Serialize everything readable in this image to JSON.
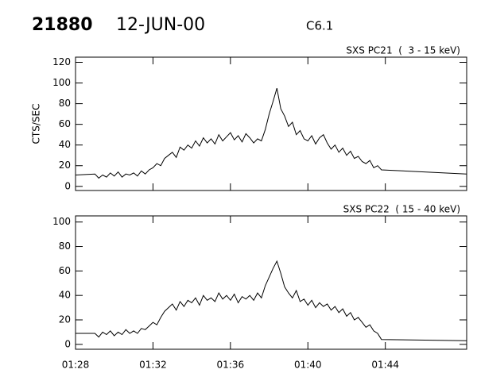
{
  "header": {
    "event": "21880",
    "date": "12-JUN-00",
    "class": "C6.1"
  },
  "chart_data": [
    {
      "type": "line",
      "subtitle": "SXS PC21  (  3 - 15 keV)",
      "ylabel": "CTS/SEC",
      "x": [
        0,
        1.0,
        1.2,
        1.4,
        1.6,
        1.8,
        2.0,
        2.2,
        2.4,
        2.6,
        2.8,
        3.0,
        3.2,
        3.4,
        3.6,
        3.8,
        4.0,
        4.2,
        4.4,
        4.6,
        4.8,
        5.0,
        5.2,
        5.4,
        5.6,
        5.8,
        6.0,
        6.2,
        6.4,
        6.6,
        6.8,
        7.0,
        7.2,
        7.4,
        7.6,
        7.8,
        8.0,
        8.2,
        8.4,
        8.6,
        8.8,
        9.0,
        9.2,
        9.4,
        9.6,
        9.8,
        10.0,
        10.2,
        10.4,
        10.6,
        10.8,
        11.0,
        11.2,
        11.4,
        11.6,
        11.8,
        12.0,
        12.2,
        12.4,
        12.6,
        12.8,
        13.0,
        13.2,
        13.4,
        13.6,
        13.8,
        14.0,
        14.2,
        14.4,
        14.6,
        14.8,
        15.0,
        15.2,
        15.4,
        15.6,
        15.8,
        20.2
      ],
      "series": [
        {
          "color": "#000000",
          "values": [
            11,
            12,
            8,
            11,
            9,
            13,
            10,
            14,
            9,
            12,
            11,
            13,
            10,
            15,
            12,
            16,
            18,
            22,
            20,
            27,
            30,
            33,
            28,
            38,
            35,
            40,
            37,
            44,
            39,
            47,
            42,
            46,
            41,
            50,
            44,
            48,
            52,
            45,
            49,
            43,
            51,
            47,
            42,
            46,
            44,
            55,
            70,
            82,
            95,
            75,
            68,
            58,
            62,
            50,
            54,
            46,
            44,
            49,
            41,
            47,
            50,
            42,
            36,
            40,
            33,
            37,
            30,
            34,
            27,
            29,
            24,
            22,
            25,
            18,
            20,
            16,
            12
          ]
        }
      ],
      "xlim": [
        0,
        20.2
      ],
      "xticks": [
        0,
        4,
        8,
        12,
        16
      ],
      "ylim": [
        -4,
        125
      ],
      "yticks": [
        0,
        20,
        40,
        60,
        80,
        100,
        120
      ]
    },
    {
      "type": "line",
      "subtitle": "SXS PC22  ( 15 - 40 keV)",
      "x": [
        0,
        1.0,
        1.2,
        1.4,
        1.6,
        1.8,
        2.0,
        2.2,
        2.4,
        2.6,
        2.8,
        3.0,
        3.2,
        3.4,
        3.6,
        3.8,
        4.0,
        4.2,
        4.4,
        4.6,
        4.8,
        5.0,
        5.2,
        5.4,
        5.6,
        5.8,
        6.0,
        6.2,
        6.4,
        6.6,
        6.8,
        7.0,
        7.2,
        7.4,
        7.6,
        7.8,
        8.0,
        8.2,
        8.4,
        8.6,
        8.8,
        9.0,
        9.2,
        9.4,
        9.6,
        9.8,
        10.0,
        10.2,
        10.4,
        10.6,
        10.8,
        11.0,
        11.2,
        11.4,
        11.6,
        11.8,
        12.0,
        12.2,
        12.4,
        12.6,
        12.8,
        13.0,
        13.2,
        13.4,
        13.6,
        13.8,
        14.0,
        14.2,
        14.4,
        14.6,
        14.8,
        15.0,
        15.2,
        15.4,
        15.6,
        15.8,
        20.2
      ],
      "series": [
        {
          "color": "#000000",
          "values": [
            9,
            9,
            6,
            10,
            8,
            11,
            7,
            10,
            8,
            12,
            9,
            11,
            9,
            13,
            12,
            15,
            18,
            16,
            22,
            27,
            30,
            33,
            28,
            35,
            31,
            36,
            34,
            38,
            32,
            40,
            36,
            38,
            35,
            42,
            37,
            40,
            36,
            41,
            34,
            39,
            37,
            40,
            36,
            42,
            38,
            48,
            55,
            62,
            68,
            58,
            47,
            42,
            38,
            44,
            35,
            37,
            32,
            36,
            30,
            34,
            31,
            33,
            28,
            31,
            26,
            29,
            23,
            26,
            20,
            22,
            18,
            14,
            16,
            11,
            9,
            4,
            3
          ]
        }
      ],
      "xlim": [
        0,
        20.2
      ],
      "xticks": [
        {
          "value": 0,
          "label": "01:28"
        },
        {
          "value": 4,
          "label": "01:32"
        },
        {
          "value": 8,
          "label": "01:36"
        },
        {
          "value": 12,
          "label": "01:40"
        },
        {
          "value": 16,
          "label": "01:44"
        }
      ],
      "ylim": [
        -4,
        105
      ],
      "yticks": [
        0,
        20,
        40,
        60,
        80,
        100
      ]
    }
  ]
}
